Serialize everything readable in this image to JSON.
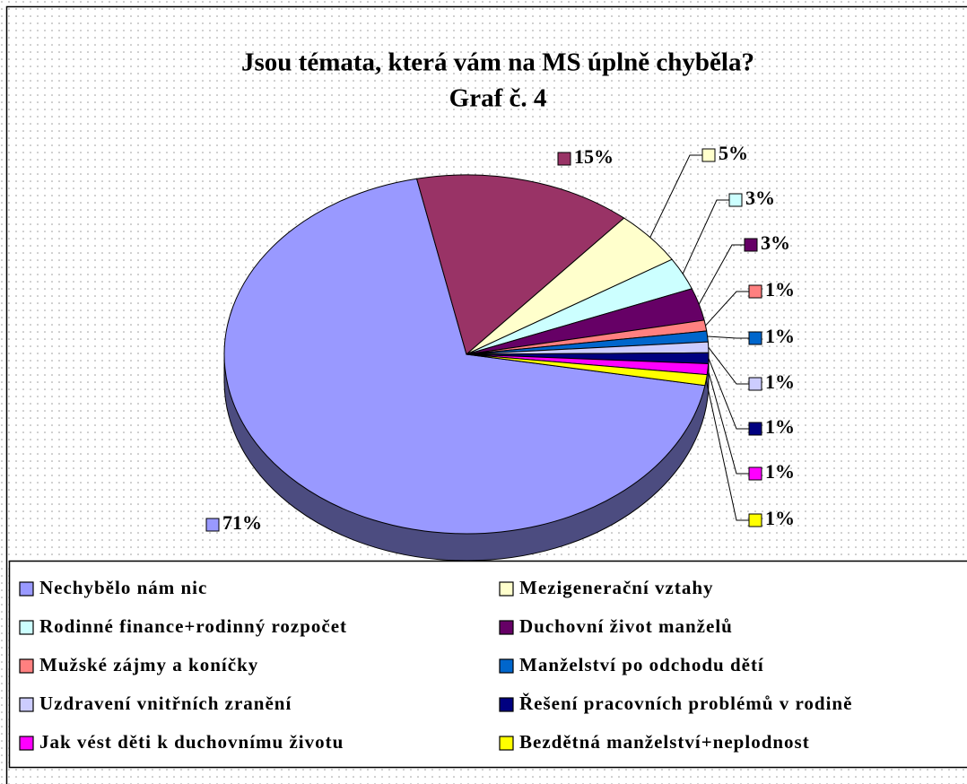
{
  "chart_data": {
    "type": "pie",
    "title": "Jsou témata, která vám na MS úplně chyběla?",
    "subtitle": "Graf č. 4",
    "categories": [
      "Nechybělo nám nic",
      null,
      "Mezigenerační vztahy",
      "Rodinné finance+rodinný rozpočet",
      "Duchovní život manželů",
      "Mužské zájmy a koníčky",
      "Manželství po odchodu dětí",
      "Uzdravení vnitřních zranění",
      "Řešení pracovních problémů v rodině",
      "Jak vést děti k duchovnímu životu",
      "Bezdětná manželství+neplodnost"
    ],
    "values": [
      71,
      15,
      5,
      3,
      3,
      1,
      1,
      1,
      1,
      1,
      1
    ],
    "value_labels": [
      "71%",
      "15%",
      "5%",
      "3%",
      "3%",
      "1%",
      "1%",
      "1%",
      "1%",
      "1%",
      "1%"
    ],
    "colors": [
      "#9999ff",
      "#993366",
      "#ffffcc",
      "#ccffff",
      "#660066",
      "#ff8080",
      "#0066cc",
      "#ccccff",
      "#000080",
      "#ff00ff",
      "#ffff00"
    ],
    "legend": "bottom"
  }
}
